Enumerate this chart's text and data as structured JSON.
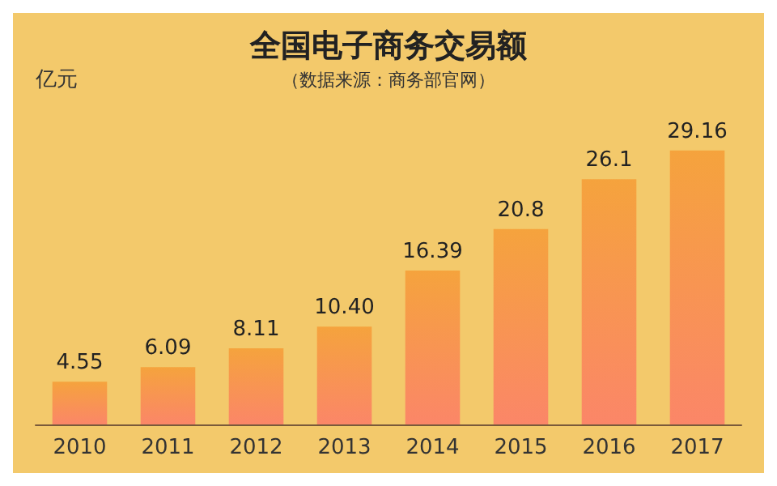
{
  "chart_data": {
    "type": "bar",
    "title": "全国电子商务交易额",
    "subtitle": "（数据来源：商务部官网）",
    "ylabel": "亿元",
    "categories": [
      "2010",
      "2011",
      "2012",
      "2013",
      "2014",
      "2015",
      "2016",
      "2017"
    ],
    "values": [
      4.55,
      6.09,
      8.11,
      10.4,
      16.39,
      20.8,
      26.1,
      29.16
    ],
    "value_labels": [
      "4.55",
      "6.09",
      "8.11",
      "10.40",
      "16.39",
      "20.8",
      "26.1",
      "29.16"
    ],
    "color": "#f5a33d",
    "grid": false
  }
}
